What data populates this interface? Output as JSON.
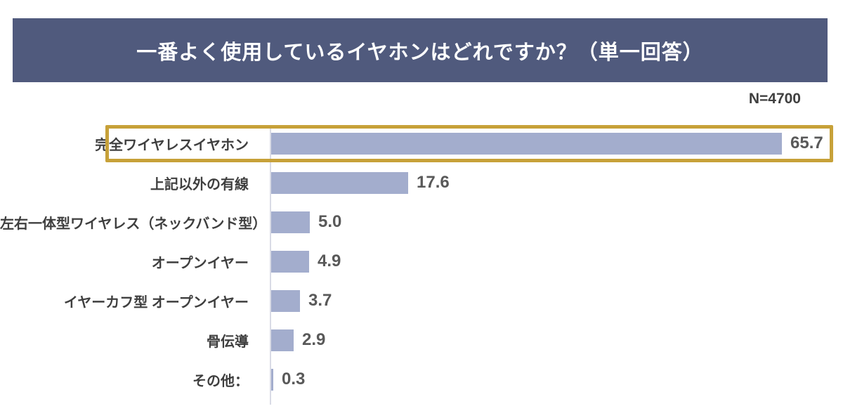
{
  "header": {
    "title": "一番よく使用しているイヤホンはどれですか？（単一回答）",
    "background_color": "#505a7d",
    "text_color": "#ffffff"
  },
  "sample_size_label": "N=4700",
  "chart_data": {
    "type": "bar",
    "orientation": "horizontal",
    "title": "一番よく使用しているイヤホンはどれですか？（単一回答）",
    "categories": [
      "完全ワイヤレスイヤホン",
      "上記以外の有線",
      "左右一体型ワイヤレス（ネックバンド型）",
      "オープンイヤー",
      "イヤーカフ型 オープンイヤー",
      "骨伝導",
      "その他："
    ],
    "values": [
      65.7,
      17.6,
      5.0,
      4.9,
      3.7,
      2.9,
      0.3
    ],
    "value_labels": [
      "65.7",
      "17.6",
      "5.0",
      "4.9",
      "3.7",
      "2.9",
      "0.3"
    ],
    "xlabel": "",
    "ylabel": "",
    "xlim": [
      0,
      70
    ],
    "grid": false,
    "legend": false,
    "bar_color": "#a3adcd",
    "label_color": "#3f3f3f",
    "value_color": "#595959",
    "highlight": {
      "row_index": 0,
      "border_color": "#c7a139"
    }
  }
}
